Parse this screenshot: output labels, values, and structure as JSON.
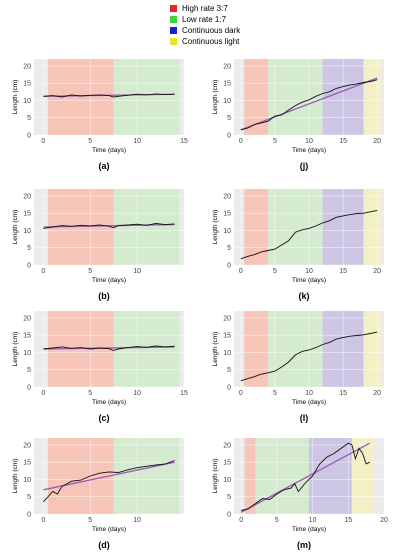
{
  "legend": [
    {
      "label": "High rate 3:7",
      "color": "#e8262a"
    },
    {
      "label": "Low rate 1:7",
      "color": "#3dd23d"
    },
    {
      "label": "Continuous dark",
      "color": "#1a23c9"
    },
    {
      "label": "Continuous light",
      "color": "#e6e62b"
    }
  ],
  "chart_data": [
    {
      "panel": "(a)",
      "type": "line",
      "xlabel": "Time (days)",
      "ylabel": "Length (cm)",
      "xlim": [
        -1,
        15
      ],
      "ylim": [
        0,
        22
      ],
      "xticks": [
        0,
        5,
        10,
        15
      ],
      "yticks": [
        0,
        5,
        10,
        15,
        20
      ],
      "phases": [
        {
          "phase": "High rate 3:7",
          "x0": 0.5,
          "x1": 7.5
        },
        {
          "phase": "Low rate 1:7",
          "x0": 7.5,
          "x1": 14.5
        }
      ],
      "series": [
        {
          "x": [
            0,
            1,
            2,
            3,
            4,
            5,
            6,
            7,
            7.5,
            8,
            9,
            10,
            11,
            12,
            13,
            14
          ],
          "y": [
            11.2,
            11.4,
            11.0,
            11.6,
            11.3,
            11.5,
            11.6,
            11.4,
            11.0,
            11.2,
            11.5,
            11.8,
            11.6,
            11.9,
            11.7,
            11.8
          ]
        }
      ],
      "fit": {
        "x": [
          0,
          14
        ],
        "y": [
          11.2,
          11.8
        ]
      }
    },
    {
      "panel": "(b)",
      "type": "line",
      "xlabel": "Time (days)",
      "ylabel": "Length (cm)",
      "xlim": [
        -1,
        15
      ],
      "ylim": [
        0,
        22
      ],
      "xticks": [
        0,
        5,
        10
      ],
      "yticks": [
        0,
        5,
        10,
        15,
        20
      ],
      "phases": [
        {
          "phase": "High rate 3:7",
          "x0": 0.5,
          "x1": 7.5
        },
        {
          "phase": "Low rate 1:7",
          "x0": 7.5,
          "x1": 14.5
        }
      ],
      "series": [
        {
          "x": [
            0,
            1,
            2,
            3,
            4,
            5,
            6,
            7,
            7.5,
            8,
            9,
            10,
            11,
            12,
            13,
            14
          ],
          "y": [
            10.6,
            11.0,
            11.4,
            11.2,
            11.5,
            11.3,
            11.6,
            11.2,
            10.8,
            11.4,
            11.6,
            11.8,
            11.5,
            12.0,
            11.7,
            11.9
          ]
        }
      ],
      "fit": {
        "x": [
          0,
          14
        ],
        "y": [
          11.0,
          11.7
        ]
      }
    },
    {
      "panel": "(c)",
      "type": "line",
      "xlabel": "Time (days)",
      "ylabel": "Length (cm)",
      "xlim": [
        -1,
        15
      ],
      "ylim": [
        0,
        22
      ],
      "xticks": [
        0,
        5,
        10,
        15
      ],
      "yticks": [
        0,
        5,
        10,
        15,
        20
      ],
      "phases": [
        {
          "phase": "High rate 3:7",
          "x0": 0.5,
          "x1": 7.5
        },
        {
          "phase": "Low rate 1:7",
          "x0": 7.5,
          "x1": 14.5
        }
      ],
      "series": [
        {
          "x": [
            0,
            1,
            2,
            3,
            4,
            5,
            6,
            7,
            7.5,
            8,
            9,
            10,
            11,
            12,
            13,
            14
          ],
          "y": [
            11.0,
            11.3,
            11.6,
            11.2,
            11.4,
            11.0,
            11.3,
            11.1,
            10.6,
            11.0,
            11.4,
            11.7,
            11.5,
            11.9,
            11.6,
            11.8
          ]
        }
      ],
      "fit": {
        "x": [
          0,
          14
        ],
        "y": [
          11.0,
          11.6
        ]
      }
    },
    {
      "panel": "(d)",
      "type": "line",
      "xlabel": "Time (days)",
      "ylabel": "Length (cm)",
      "xlim": [
        -1,
        15
      ],
      "ylim": [
        0,
        22
      ],
      "xticks": [
        0,
        5,
        10
      ],
      "yticks": [
        0,
        5,
        10,
        15,
        20
      ],
      "phases": [
        {
          "phase": "High rate 3:7",
          "x0": 0.5,
          "x1": 7.5
        },
        {
          "phase": "Low rate 1:7",
          "x0": 7.5,
          "x1": 14.5
        }
      ],
      "series": [
        {
          "x": [
            0,
            0.5,
            1,
            1.5,
            2,
            3,
            4,
            5,
            6,
            7,
            8,
            9,
            10,
            11,
            12,
            13,
            14
          ],
          "y": [
            3.5,
            5.0,
            6.5,
            5.8,
            8.0,
            9.5,
            9.8,
            11.0,
            11.8,
            12.2,
            12.0,
            12.8,
            13.4,
            13.8,
            14.2,
            14.5,
            15.5
          ]
        }
      ],
      "fit": {
        "x": [
          0,
          14
        ],
        "y": [
          7.0,
          15.0
        ]
      }
    },
    {
      "panel": "(j)",
      "type": "line",
      "xlabel": "Time (days)",
      "ylabel": "Length (cm)",
      "xlim": [
        -1,
        21
      ],
      "ylim": [
        0,
        22
      ],
      "xticks": [
        0,
        5,
        10,
        15,
        20
      ],
      "yticks": [
        0,
        5,
        10,
        15,
        20
      ],
      "phases": [
        {
          "phase": "High rate 3:7",
          "x0": 0.5,
          "x1": 4
        },
        {
          "phase": "Low rate 1:7",
          "x0": 4,
          "x1": 12
        },
        {
          "phase": "Continuous dark",
          "x0": 12,
          "x1": 18
        },
        {
          "phase": "Continuous light",
          "x0": 18,
          "x1": 20.5
        }
      ],
      "series": [
        {
          "x": [
            0,
            1,
            2,
            3,
            4,
            5,
            6,
            7,
            8,
            9,
            10,
            11,
            12,
            13,
            14,
            15,
            16,
            17,
            18,
            19,
            20
          ],
          "y": [
            1.5,
            2.0,
            3.0,
            3.5,
            4.0,
            5.5,
            5.8,
            7.2,
            8.5,
            9.5,
            10.2,
            11.2,
            12.0,
            12.5,
            13.5,
            14.0,
            14.5,
            14.8,
            15.2,
            15.5,
            16.0
          ]
        }
      ],
      "fit": {
        "x": [
          0,
          20
        ],
        "y": [
          1.5,
          16.5
        ]
      }
    },
    {
      "panel": "(k)",
      "type": "line",
      "xlabel": "Time (days)",
      "ylabel": "Length (cm)",
      "xlim": [
        -1,
        21
      ],
      "ylim": [
        0,
        22
      ],
      "xticks": [
        0,
        5,
        10,
        15,
        20
      ],
      "yticks": [
        0,
        5,
        10,
        15,
        20
      ],
      "phases": [
        {
          "phase": "High rate 3:7",
          "x0": 0.5,
          "x1": 4
        },
        {
          "phase": "Low rate 1:7",
          "x0": 4,
          "x1": 12
        },
        {
          "phase": "Continuous dark",
          "x0": 12,
          "x1": 18
        },
        {
          "phase": "Continuous light",
          "x0": 18,
          "x1": 20.5
        }
      ],
      "series": [
        {
          "x": [
            0,
            1,
            2,
            3,
            4,
            5,
            6,
            7,
            8,
            9,
            10,
            11,
            12,
            13,
            14,
            15,
            16,
            17,
            18,
            19,
            20
          ],
          "y": [
            1.8,
            2.5,
            3.0,
            3.8,
            4.2,
            4.6,
            5.8,
            7.0,
            9.5,
            10.2,
            10.6,
            11.3,
            12.2,
            12.8,
            13.8,
            14.2,
            14.6,
            14.9,
            15.0,
            15.4,
            15.8
          ]
        }
      ]
    },
    {
      "panel": "(l)",
      "type": "line",
      "xlabel": "Time (days)",
      "ylabel": "Length (cm)",
      "xlim": [
        -1,
        21
      ],
      "ylim": [
        0,
        22
      ],
      "xticks": [
        0,
        5,
        10,
        15,
        20
      ],
      "yticks": [
        0,
        5,
        10,
        15,
        20
      ],
      "phases": [
        {
          "phase": "High rate 3:7",
          "x0": 0.5,
          "x1": 4
        },
        {
          "phase": "Low rate 1:7",
          "x0": 4,
          "x1": 12
        },
        {
          "phase": "Continuous dark",
          "x0": 12,
          "x1": 18
        },
        {
          "phase": "Continuous light",
          "x0": 18,
          "x1": 20.5
        }
      ],
      "series": [
        {
          "x": [
            0,
            1,
            2,
            3,
            4,
            5,
            6,
            7,
            8,
            9,
            10,
            11,
            12,
            13,
            14,
            15,
            16,
            17,
            18,
            19,
            20
          ],
          "y": [
            1.8,
            2.4,
            3.0,
            3.7,
            4.1,
            4.6,
            5.8,
            7.2,
            9.3,
            10.3,
            10.7,
            11.4,
            12.3,
            12.9,
            13.9,
            14.3,
            14.7,
            14.9,
            15.1,
            15.5,
            15.9
          ]
        }
      ]
    },
    {
      "panel": "(m)",
      "type": "line",
      "xlabel": "Time (days)",
      "ylabel": "Length (cm)",
      "xlim": [
        -1,
        20
      ],
      "ylim": [
        0,
        22
      ],
      "xticks": [
        0,
        5,
        10,
        15,
        20
      ],
      "yticks": [
        0,
        5,
        10,
        15,
        20
      ],
      "phases": [
        {
          "phase": "High rate 3:7",
          "x0": 0.5,
          "x1": 2
        },
        {
          "phase": "Low rate 1:7",
          "x0": 2,
          "x1": 9.5
        },
        {
          "phase": "Continuous dark",
          "x0": 9.5,
          "x1": 15.5
        },
        {
          "phase": "Continuous light",
          "x0": 15.5,
          "x1": 18.5
        }
      ],
      "series": [
        {
          "x": [
            0,
            1,
            2,
            3,
            4,
            5,
            6,
            7,
            7.5,
            8,
            9,
            10,
            11,
            12,
            13,
            14,
            15,
            15.5,
            16,
            16.5,
            17,
            17.5,
            18
          ],
          "y": [
            1.0,
            1.5,
            3.0,
            4.5,
            4.2,
            5.8,
            7.0,
            7.5,
            8.8,
            6.5,
            9.0,
            11.0,
            14.5,
            16.5,
            17.5,
            19.0,
            20.5,
            20.0,
            16.0,
            19.0,
            17.5,
            14.5,
            15.0
          ]
        }
      ],
      "fit": {
        "x": [
          0,
          18
        ],
        "y": [
          0.5,
          20.5
        ]
      }
    }
  ]
}
